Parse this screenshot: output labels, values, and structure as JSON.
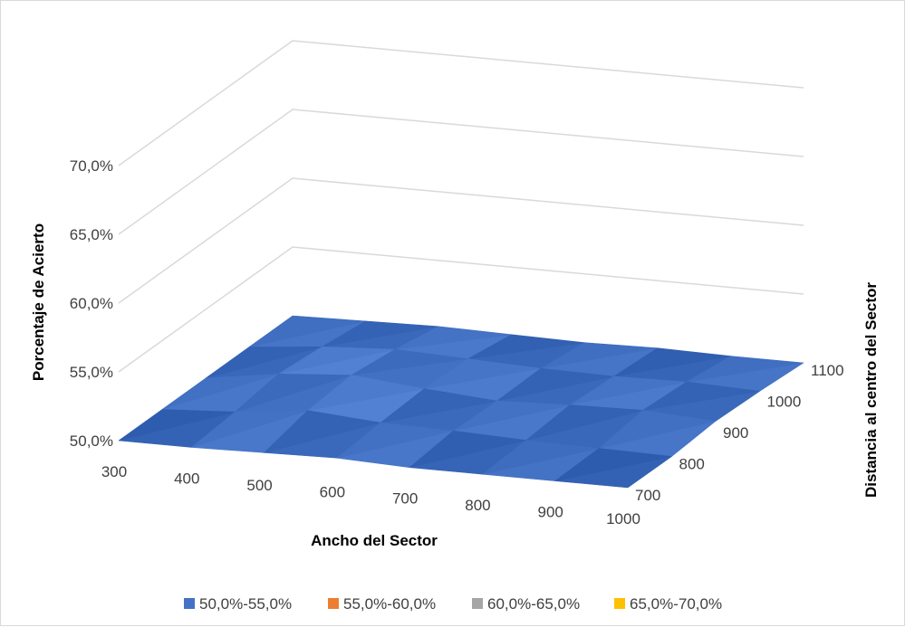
{
  "chart_data": {
    "type": "surface",
    "xlabel": "Ancho del Sector",
    "ylabel": "Distancia  al centro del Sector",
    "zlabel": "Porcentaje de Acierto",
    "x_categories": [
      "300",
      "400",
      "500",
      "600",
      "700",
      "800",
      "900",
      "1000"
    ],
    "y_categories": [
      "700",
      "800",
      "900",
      "1000",
      "1100"
    ],
    "z_ticks": [
      "50,0%",
      "55,0%",
      "60,0%",
      "65,0%",
      "70,0%"
    ],
    "z_range": [
      50,
      70
    ],
    "values_percent": [
      [
        50.0,
        50.0,
        50.1,
        50.2,
        50.0,
        50.0,
        50.0,
        50.0
      ],
      [
        50.0,
        50.3,
        50.9,
        50.5,
        50.4,
        50.2,
        50.1,
        50.0
      ],
      [
        50.0,
        50.8,
        51.2,
        50.7,
        50.3,
        50.5,
        50.6,
        50.3
      ],
      [
        50.0,
        50.5,
        50.8,
        50.6,
        50.4,
        50.3,
        50.4,
        50.2
      ],
      [
        50.0,
        50.1,
        50.2,
        50.1,
        50.0,
        50.1,
        50.0,
        50.0
      ]
    ],
    "legend": [
      {
        "label": "50,0%-55,0%",
        "color": "#4472c4"
      },
      {
        "label": "55,0%-60,0%",
        "color": "#ed7d31"
      },
      {
        "label": "60,0%-65,0%",
        "color": "#a5a5a5"
      },
      {
        "label": "65,0%-70,0%",
        "color": "#ffc000"
      }
    ],
    "legend_position": "bottom",
    "grid": true
  }
}
